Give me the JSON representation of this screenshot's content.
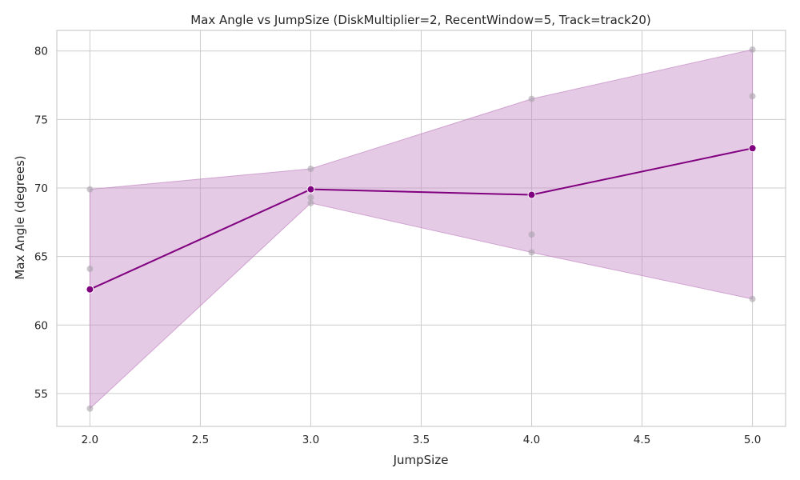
{
  "chart_data": {
    "type": "line",
    "title": "Max Angle vs JumpSize (DiskMultiplier=2, RecentWindow=5, Track=track20)",
    "xlabel": "JumpSize",
    "ylabel": "Max Angle (degrees)",
    "xlim": [
      1.85,
      5.15
    ],
    "ylim": [
      52.6,
      81.5
    ],
    "xticks": [
      2.0,
      2.5,
      3.0,
      3.5,
      4.0,
      4.5,
      5.0
    ],
    "xtick_labels": [
      "2.0",
      "2.5",
      "3.0",
      "3.5",
      "4.0",
      "4.5",
      "5.0"
    ],
    "yticks": [
      55,
      60,
      65,
      70,
      75,
      80
    ],
    "ytick_labels": [
      "55",
      "60",
      "65",
      "70",
      "75",
      "80"
    ],
    "grid": true,
    "colors": {
      "line": "#800080",
      "band": "#c389c3",
      "raw_points": "#a9a1ab",
      "grid": "#cccccc"
    },
    "mean_series": {
      "x": [
        2.0,
        3.0,
        4.0,
        5.0
      ],
      "y": [
        62.6,
        69.9,
        69.5,
        72.9
      ]
    },
    "band": {
      "x": [
        2.0,
        3.0,
        4.0,
        5.0
      ],
      "lower": [
        53.9,
        68.9,
        65.3,
        61.9
      ],
      "upper": [
        69.9,
        71.4,
        76.5,
        80.1
      ]
    },
    "raw_points": [
      {
        "x": 2.0,
        "y": 69.9
      },
      {
        "x": 2.0,
        "y": 64.1
      },
      {
        "x": 2.0,
        "y": 53.9
      },
      {
        "x": 3.0,
        "y": 71.4
      },
      {
        "x": 3.0,
        "y": 69.3
      },
      {
        "x": 3.0,
        "y": 68.9
      },
      {
        "x": 4.0,
        "y": 76.5
      },
      {
        "x": 4.0,
        "y": 66.6
      },
      {
        "x": 4.0,
        "y": 65.3
      },
      {
        "x": 5.0,
        "y": 80.1
      },
      {
        "x": 5.0,
        "y": 76.7
      },
      {
        "x": 5.0,
        "y": 61.9
      }
    ]
  }
}
